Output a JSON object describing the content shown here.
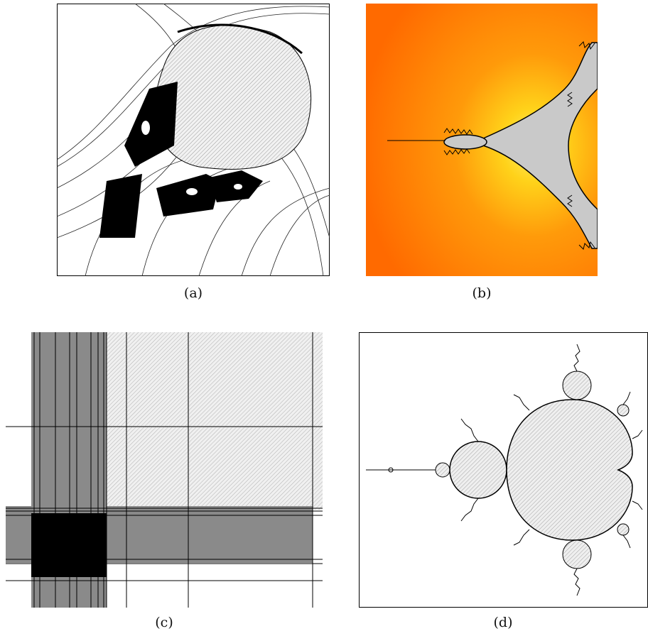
{
  "figure": {
    "panels": [
      {
        "id": "a",
        "caption": "(a)",
        "description_key": "attractor-with-black-basins"
      },
      {
        "id": "b",
        "caption": "(b)",
        "description_key": "orange-yellow-escape-time-tricorn-like"
      },
      {
        "id": "c",
        "caption": "(c)",
        "description_key": "grid-of-stripes-black-lower-left"
      },
      {
        "id": "d",
        "caption": "(d)",
        "description_key": "mandelbrot-set-outline"
      }
    ],
    "colors": {
      "black": "#000000",
      "hatch_gray": "#c8c8c8",
      "dark_gray": "#8a8a8a",
      "orange": "#ff6a00",
      "yellow": "#ffe600",
      "light_gray_fill": "#c9c9c9"
    }
  }
}
